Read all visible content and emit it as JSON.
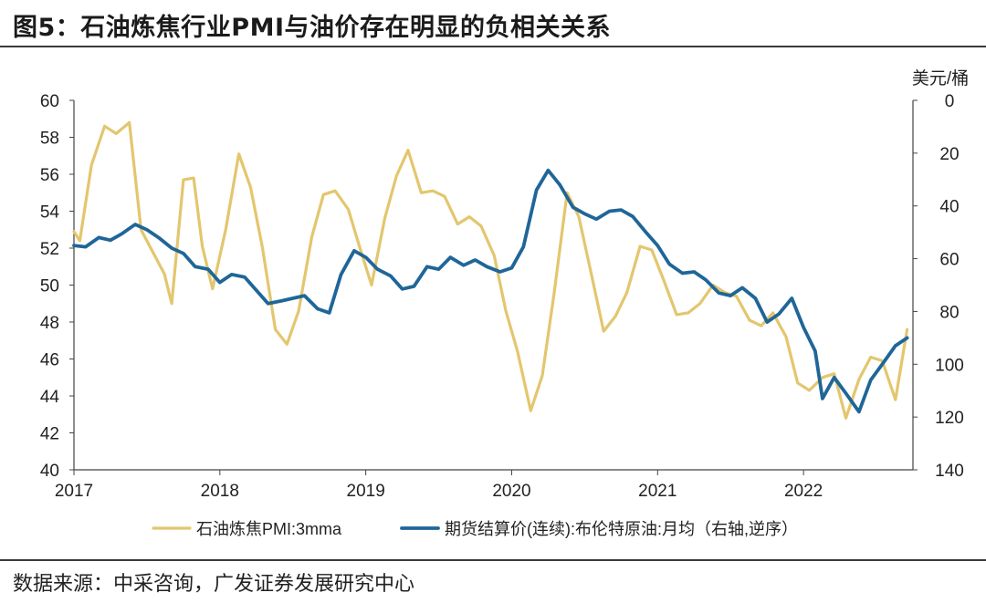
{
  "header": {
    "title": "图5：石油炼焦行业PMI与油价存在明显的负相关关系"
  },
  "footer": {
    "source": "数据来源：中采咨询，广发证券发展研究中心"
  },
  "colors": {
    "pmi": "#E3C66E",
    "oil": "#1F6698",
    "axis": "#444444"
  },
  "chart_data": {
    "type": "line",
    "title": "石油炼焦行业PMI与油价存在明显的负相关关系",
    "right_axis_unit": "美元/桶",
    "x_ticks": [
      "2017",
      "2018",
      "2019",
      "2020",
      "2021",
      "2022"
    ],
    "x_range": [
      2017.0,
      2022.75
    ],
    "y_left": {
      "range": [
        40,
        60
      ],
      "ticks": [
        "40",
        "42",
        "44",
        "46",
        "48",
        "50",
        "52",
        "54",
        "56",
        "58",
        "60"
      ]
    },
    "y_right": {
      "range": [
        0,
        140
      ],
      "reversed": true,
      "ticks": [
        "0",
        "20",
        "40",
        "60",
        "80",
        "100",
        "120",
        "140"
      ]
    },
    "legend": [
      "石油炼焦PMI:3mma",
      "期货结算价(连续):布伦特原油:月均（右轴,逆序）"
    ],
    "series": [
      {
        "name": "石油炼焦PMI:3mma",
        "axis": "left",
        "values": [
          [
            2017.0,
            52.9
          ],
          [
            2017.04,
            52.4
          ],
          [
            2017.12,
            56.5
          ],
          [
            2017.21,
            58.6
          ],
          [
            2017.29,
            58.2
          ],
          [
            2017.38,
            58.8
          ],
          [
            2017.46,
            53.0
          ],
          [
            2017.54,
            51.8
          ],
          [
            2017.62,
            50.6
          ],
          [
            2017.67,
            49.0
          ],
          [
            2017.75,
            55.7
          ],
          [
            2017.82,
            55.8
          ],
          [
            2017.88,
            52.1
          ],
          [
            2017.95,
            49.8
          ],
          [
            2018.04,
            53.0
          ],
          [
            2018.13,
            57.1
          ],
          [
            2018.21,
            55.3
          ],
          [
            2018.29,
            52.1
          ],
          [
            2018.38,
            47.6
          ],
          [
            2018.46,
            46.8
          ],
          [
            2018.54,
            48.6
          ],
          [
            2018.63,
            52.6
          ],
          [
            2018.71,
            54.9
          ],
          [
            2018.79,
            55.1
          ],
          [
            2018.88,
            54.1
          ],
          [
            2018.96,
            52.0
          ],
          [
            2019.04,
            50.0
          ],
          [
            2019.13,
            53.6
          ],
          [
            2019.21,
            55.9
          ],
          [
            2019.29,
            57.3
          ],
          [
            2019.38,
            55.0
          ],
          [
            2019.46,
            55.1
          ],
          [
            2019.54,
            54.8
          ],
          [
            2019.63,
            53.3
          ],
          [
            2019.71,
            53.7
          ],
          [
            2019.79,
            53.2
          ],
          [
            2019.88,
            51.6
          ],
          [
            2019.96,
            48.6
          ],
          [
            2020.04,
            46.4
          ],
          [
            2020.13,
            43.2
          ],
          [
            2020.21,
            45.1
          ],
          [
            2020.29,
            49.5
          ],
          [
            2020.38,
            55.0
          ],
          [
            2020.46,
            53.7
          ],
          [
            2020.54,
            50.8
          ],
          [
            2020.63,
            47.5
          ],
          [
            2020.71,
            48.3
          ],
          [
            2020.79,
            49.6
          ],
          [
            2020.88,
            52.1
          ],
          [
            2020.96,
            51.9
          ],
          [
            2021.04,
            50.3
          ],
          [
            2021.13,
            48.4
          ],
          [
            2021.21,
            48.5
          ],
          [
            2021.29,
            49.0
          ],
          [
            2021.38,
            50.0
          ],
          [
            2021.46,
            49.6
          ],
          [
            2021.54,
            49.4
          ],
          [
            2021.63,
            48.1
          ],
          [
            2021.71,
            47.8
          ],
          [
            2021.79,
            48.5
          ],
          [
            2021.88,
            47.2
          ],
          [
            2021.96,
            44.7
          ],
          [
            2022.04,
            44.3
          ],
          [
            2022.13,
            45.0
          ],
          [
            2022.21,
            45.2
          ],
          [
            2022.29,
            42.8
          ],
          [
            2022.38,
            44.9
          ],
          [
            2022.46,
            46.1
          ],
          [
            2022.54,
            45.9
          ],
          [
            2022.63,
            43.8
          ],
          [
            2022.71,
            47.6
          ]
        ]
      },
      {
        "name": "期货结算价(连续):布伦特原油:月均（右轴,逆序）",
        "axis": "right",
        "values": [
          [
            2017.0,
            55.0
          ],
          [
            2017.08,
            55.5
          ],
          [
            2017.17,
            52.0
          ],
          [
            2017.25,
            53.0
          ],
          [
            2017.33,
            50.5
          ],
          [
            2017.42,
            47.0
          ],
          [
            2017.5,
            49.0
          ],
          [
            2017.58,
            52.0
          ],
          [
            2017.67,
            56.0
          ],
          [
            2017.75,
            58.0
          ],
          [
            2017.83,
            63.0
          ],
          [
            2017.92,
            64.0
          ],
          [
            2018.0,
            69.0
          ],
          [
            2018.08,
            66.0
          ],
          [
            2018.17,
            67.0
          ],
          [
            2018.25,
            72.0
          ],
          [
            2018.33,
            77.0
          ],
          [
            2018.42,
            76.0
          ],
          [
            2018.5,
            75.0
          ],
          [
            2018.58,
            74.0
          ],
          [
            2018.67,
            79.0
          ],
          [
            2018.75,
            80.5
          ],
          [
            2018.83,
            66.0
          ],
          [
            2018.92,
            57.0
          ],
          [
            2019.0,
            59.5
          ],
          [
            2019.08,
            64.0
          ],
          [
            2019.17,
            66.5
          ],
          [
            2019.25,
            71.5
          ],
          [
            2019.33,
            70.5
          ],
          [
            2019.42,
            63.0
          ],
          [
            2019.5,
            64.0
          ],
          [
            2019.58,
            59.5
          ],
          [
            2019.67,
            62.5
          ],
          [
            2019.75,
            60.5
          ],
          [
            2019.83,
            63.0
          ],
          [
            2019.92,
            65.0
          ],
          [
            2020.0,
            63.5
          ],
          [
            2020.08,
            55.5
          ],
          [
            2020.17,
            34.0
          ],
          [
            2020.25,
            26.5
          ],
          [
            2020.33,
            32.0
          ],
          [
            2020.42,
            40.5
          ],
          [
            2020.5,
            43.0
          ],
          [
            2020.58,
            45.0
          ],
          [
            2020.67,
            42.0
          ],
          [
            2020.75,
            41.5
          ],
          [
            2020.83,
            44.0
          ],
          [
            2020.92,
            50.0
          ],
          [
            2021.0,
            55.0
          ],
          [
            2021.08,
            62.0
          ],
          [
            2021.17,
            65.5
          ],
          [
            2021.25,
            65.0
          ],
          [
            2021.33,
            68.0
          ],
          [
            2021.42,
            73.0
          ],
          [
            2021.5,
            74.0
          ],
          [
            2021.58,
            71.0
          ],
          [
            2021.67,
            75.0
          ],
          [
            2021.75,
            84.0
          ],
          [
            2021.83,
            81.0
          ],
          [
            2021.92,
            75.0
          ],
          [
            2022.0,
            86.0
          ],
          [
            2022.08,
            95.0
          ],
          [
            2022.13,
            113.0
          ],
          [
            2022.21,
            105.0
          ],
          [
            2022.29,
            111.0
          ],
          [
            2022.38,
            118.0
          ],
          [
            2022.46,
            106.0
          ],
          [
            2022.54,
            100.0
          ],
          [
            2022.63,
            93.0
          ],
          [
            2022.71,
            90.0
          ]
        ]
      }
    ]
  }
}
